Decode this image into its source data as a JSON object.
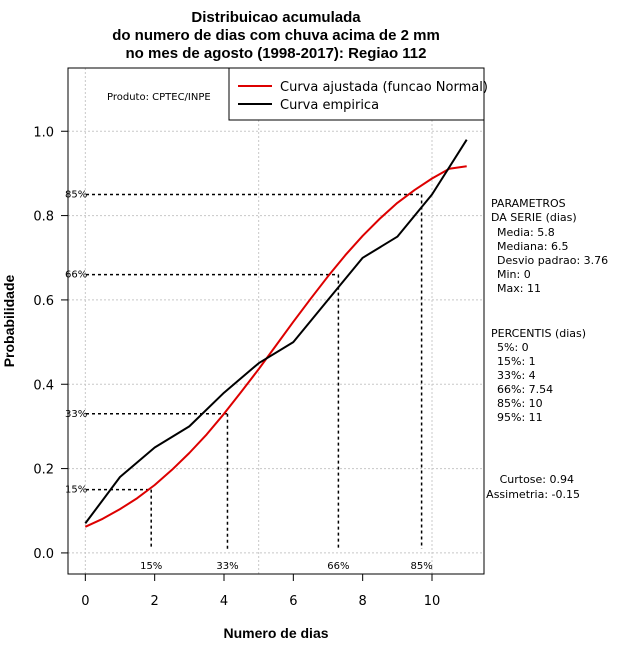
{
  "chart_data": {
    "type": "line",
    "title_lines": [
      "Distribuicao acumulada",
      "do numero de dias com chuva acima de 2 mm",
      "no mes de agosto (1998-2017): Regiao 112"
    ],
    "xlabel": "Numero de dias",
    "ylabel": "Probabilidade",
    "xlim": [
      -0.5,
      11.5
    ],
    "ylim": [
      -0.05,
      1.15
    ],
    "x_ticks": [
      "0",
      "2",
      "4",
      "6",
      "8",
      "10"
    ],
    "y_ticks": [
      "0.0",
      "0.2",
      "0.4",
      "0.6",
      "0.8",
      "1.0"
    ],
    "grid": true,
    "legend_position": "top-right",
    "series": [
      {
        "name": "Curva ajustada (funcao Normal)",
        "color": "#dd0000",
        "x": [
          0,
          0.5,
          1,
          1.5,
          2,
          2.5,
          3,
          3.5,
          4,
          4.5,
          5,
          5.5,
          6,
          6.5,
          7,
          7.5,
          8,
          8.5,
          9,
          9.5,
          10,
          10.5,
          11
        ],
        "y": [
          0.062,
          0.081,
          0.104,
          0.13,
          0.161,
          0.197,
          0.237,
          0.281,
          0.33,
          0.382,
          0.436,
          0.492,
          0.548,
          0.603,
          0.656,
          0.706,
          0.752,
          0.793,
          0.83,
          0.861,
          0.888,
          0.911,
          0.917
        ]
      },
      {
        "name": "Curva empirica",
        "color": "#000000",
        "x": [
          0,
          1,
          2,
          3,
          4,
          5,
          6,
          7,
          8,
          9,
          10,
          11
        ],
        "y": [
          0.07,
          0.18,
          0.25,
          0.3,
          0.38,
          0.45,
          0.5,
          0.6,
          0.7,
          0.75,
          0.85,
          0.98
        ]
      }
    ],
    "percentile_markers": [
      {
        "label": "15%",
        "x": 1.9,
        "y": 0.15
      },
      {
        "label": "33%",
        "x": 4.1,
        "y": 0.33
      },
      {
        "label": "66%",
        "x": 7.3,
        "y": 0.66
      },
      {
        "label": "85%",
        "x": 9.7,
        "y": 0.85
      }
    ],
    "annotation": "Produto: CPTEC/INPE"
  },
  "side_panel": {
    "params_header": [
      "PARAMETROS",
      "DA SERIE (dias)"
    ],
    "params": [
      "Media: 5.8",
      "Mediana: 6.5",
      "Desvio padrao: 3.76",
      "Min: 0",
      "Max: 11"
    ],
    "percentis_header": "PERCENTIS (dias)",
    "percentis": [
      "5%: 0",
      "15%: 1",
      "33%: 4",
      "66%: 7.54",
      "85%: 10",
      "95%: 11"
    ],
    "curtose": "Curtose: 0.94",
    "assimetria": "Assimetria: -0.15"
  }
}
